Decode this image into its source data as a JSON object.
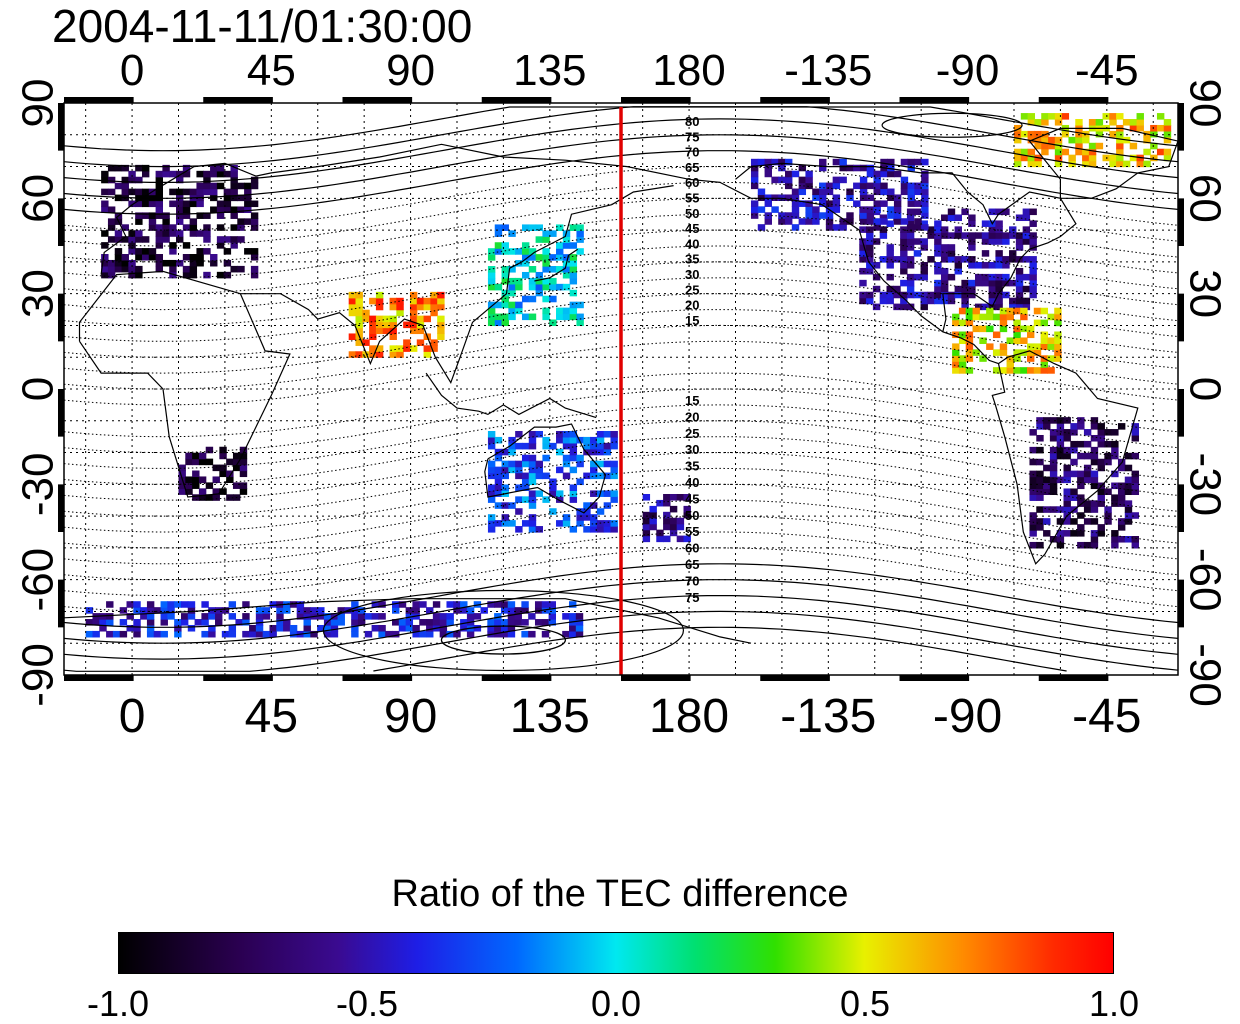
{
  "title": "2004-11-11/01:30:00",
  "map": {
    "lon_range": [
      -22,
      338
    ],
    "lat_range": [
      -90,
      90
    ],
    "meridian_line_lon": 158,
    "meridian_line_color": "#e00000",
    "x_ticks": [
      {
        "lon": 0,
        "label": "0"
      },
      {
        "lon": 45,
        "label": "45"
      },
      {
        "lon": 90,
        "label": "90"
      },
      {
        "lon": 135,
        "label": "135"
      },
      {
        "lon": 180,
        "label": "180"
      },
      {
        "lon": 225,
        "label": "-135"
      },
      {
        "lon": 270,
        "label": "-90"
      },
      {
        "lon": 315,
        "label": "-45"
      }
    ],
    "y_ticks": [
      {
        "lat": 90,
        "label": "90",
        "right_label": "90"
      },
      {
        "lat": 60,
        "label": "60",
        "right_label": "60"
      },
      {
        "lat": 30,
        "label": "30",
        "right_label": "30"
      },
      {
        "lat": 0,
        "label": "0",
        "right_label": "0"
      },
      {
        "lat": -30,
        "label": "-30",
        "right_label": "-30"
      },
      {
        "lat": -60,
        "label": "-60",
        "right_label": "-60"
      },
      {
        "lat": -90,
        "label": "-90",
        "right_label": "-90"
      }
    ],
    "contour_labels_north": [
      "80",
      "75",
      "70",
      "65",
      "60",
      "55",
      "50",
      "45",
      "40",
      "35",
      "30",
      "25",
      "20",
      "15"
    ],
    "contour_labels_south": [
      "15",
      "20",
      "25",
      "30",
      "35",
      "40",
      "45",
      "50",
      "55",
      "60",
      "65",
      "70",
      "75"
    ]
  },
  "colorbar": {
    "title": "Ratio of the TEC difference",
    "min": -1.0,
    "max": 1.0,
    "ticks": [
      {
        "value": -1.0,
        "label": "-1.0"
      },
      {
        "value": -0.5,
        "label": "-0.5"
      },
      {
        "value": 0.0,
        "label": "0.0"
      },
      {
        "value": 0.5,
        "label": "0.5"
      },
      {
        "value": 1.0,
        "label": "1.0"
      }
    ]
  },
  "data_regions": [
    {
      "name": "europe",
      "lon_min": -10,
      "lon_max": 40,
      "lat_min": 35,
      "lat_max": 70,
      "value": -0.8
    },
    {
      "name": "north-america",
      "lon_min": 235,
      "lon_max": 290,
      "lat_min": 25,
      "lat_max": 55,
      "value": -0.6
    },
    {
      "name": "alaska-canada",
      "lon_min": 200,
      "lon_max": 255,
      "lat_min": 50,
      "lat_max": 72,
      "value": -0.55
    },
    {
      "name": "greenland",
      "lon_min": 285,
      "lon_max": 335,
      "lat_min": 70,
      "lat_max": 85,
      "value": 0.6
    },
    {
      "name": "east-asia",
      "lon_min": 115,
      "lon_max": 145,
      "lat_min": 20,
      "lat_max": 50,
      "value": 0.0
    },
    {
      "name": "central-america",
      "lon_min": 265,
      "lon_max": 300,
      "lat_min": 5,
      "lat_max": 25,
      "value": 0.55
    },
    {
      "name": "south-america",
      "lon_min": 290,
      "lon_max": 325,
      "lat_min": -50,
      "lat_max": -10,
      "value": -0.7
    },
    {
      "name": "australia",
      "lon_min": 115,
      "lon_max": 155,
      "lat_min": -45,
      "lat_max": -15,
      "value": -0.3
    },
    {
      "name": "new-zealand",
      "lon_min": 165,
      "lon_max": 180,
      "lat_min": -48,
      "lat_max": -34,
      "value": -0.6
    },
    {
      "name": "southern-africa",
      "lon_min": 15,
      "lon_max": 35,
      "lat_min": -35,
      "lat_max": -20,
      "value": -0.85
    },
    {
      "name": "antarctica-coast",
      "lon_min": -15,
      "lon_max": 145,
      "lat_min": -78,
      "lat_max": -68,
      "value": -0.45
    },
    {
      "name": "india",
      "lon_min": 70,
      "lon_max": 100,
      "lat_min": 10,
      "lat_max": 30,
      "value": 0.7
    }
  ]
}
